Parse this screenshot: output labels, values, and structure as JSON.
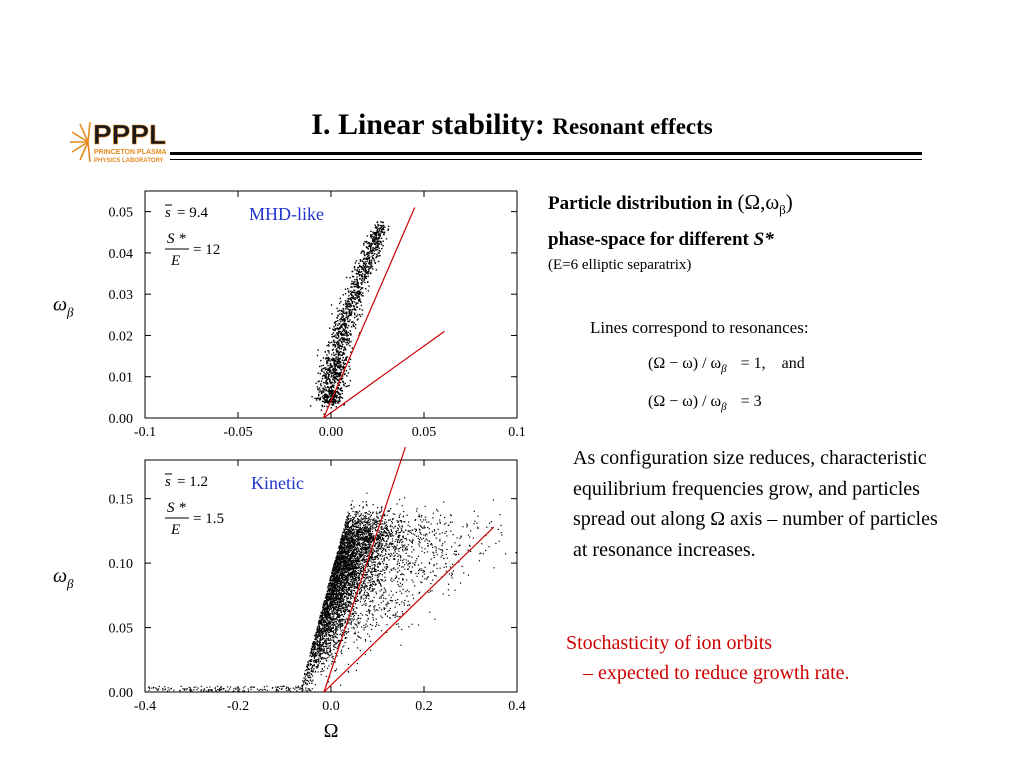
{
  "header": {
    "title_main": "I. Linear stability:",
    "title_sub": "Resonant effects",
    "logo": {
      "text": "PPPL",
      "subtext_1": "PRINCETON PLASMA",
      "subtext_2": "PHYSICS LABORATORY",
      "color": "#e58a1f"
    }
  },
  "right": {
    "heading_line1": "Particle distribution in",
    "heading_symbol": "(Ω,ω",
    "heading_symbol_sub": "β",
    "heading_symbol_end": ")",
    "heading_line2_prefix": "phase-space for different",
    "heading_line2_var": "S*",
    "separatrix_note": "(E=6  elliptic separatrix)",
    "lines_note": "Lines correspond to resonances:",
    "resonance_1": "(Ω − ω) / ω",
    "resonance_1_sub": "β",
    "resonance_1_rhs": "= 1,",
    "resonance_1_tail": "and",
    "resonance_2": "(Ω − ω) / ω",
    "resonance_2_sub": "β",
    "resonance_2_rhs": "= 3",
    "paragraph": "As configuration size reduces, characteristic equilibrium frequencies grow, and particles spread out along Ω axis – number of particles at resonance increases.",
    "stochastic_1": "Stochasticity of ion orbits",
    "stochastic_2": "– expected to reduce growth rate.",
    "red_color": "#cc0000"
  },
  "chart_data": [
    {
      "type": "scatter",
      "title": "MHD-like",
      "title_color": "#2233cc",
      "xlabel": "",
      "ylabel": "ω_β",
      "xlim": [
        -0.1,
        0.1
      ],
      "ylim": [
        0.0,
        0.055
      ],
      "x_ticks": [
        "-0.1",
        "-0.05",
        "0.00",
        "0.05",
        "0.1"
      ],
      "y_ticks": [
        "0.00",
        "0.01",
        "0.02",
        "0.03",
        "0.04",
        "0.05"
      ],
      "params": {
        "sbar": "9.4",
        "s_over_e": "12"
      },
      "resonance_lines": [
        {
          "label": "(Ω−ω)/ωβ = 1",
          "x": [
            -0.004,
            0.045
          ],
          "y": [
            0.0,
            0.051
          ]
        },
        {
          "label": "(Ω−ω)/ωβ = 3",
          "x": [
            -0.004,
            0.061
          ],
          "y": [
            0.0,
            0.021
          ]
        }
      ],
      "line_color": "#cc0000",
      "point_color": "#000000",
      "point_count": "approximate",
      "distribution": "narrow curved band from about (0.00, 0.005) rising to about (0.035, 0.046)"
    },
    {
      "type": "scatter",
      "title": "Kinetic",
      "title_color": "#2233cc",
      "xlabel": "Ω",
      "ylabel": "ω_β",
      "xlim": [
        -0.4,
        0.4
      ],
      "ylim": [
        0.0,
        0.18
      ],
      "x_ticks": [
        "-0.4",
        "-0.2",
        "0.0",
        "0.2",
        "0.4"
      ],
      "y_ticks": [
        "0.00",
        "0.05",
        "0.10",
        "0.15"
      ],
      "params": {
        "sbar": "1.2",
        "s_over_e": "1.5"
      },
      "resonance_lines": [
        {
          "label": "(Ω−ω)/ωβ = 1",
          "x": [
            -0.015,
            0.16
          ],
          "y": [
            0.0,
            0.19
          ]
        },
        {
          "label": "(Ω−ω)/ωβ = 3",
          "x": [
            -0.015,
            0.35
          ],
          "y": [
            0.0,
            0.128
          ]
        }
      ],
      "line_color": "#cc0000",
      "point_color": "#000000",
      "point_count": "approximate",
      "distribution": "broad wedge from about (-0.05, 0.01) fanning to (0.2, 0.13) and (0.3, 0.05)"
    }
  ]
}
